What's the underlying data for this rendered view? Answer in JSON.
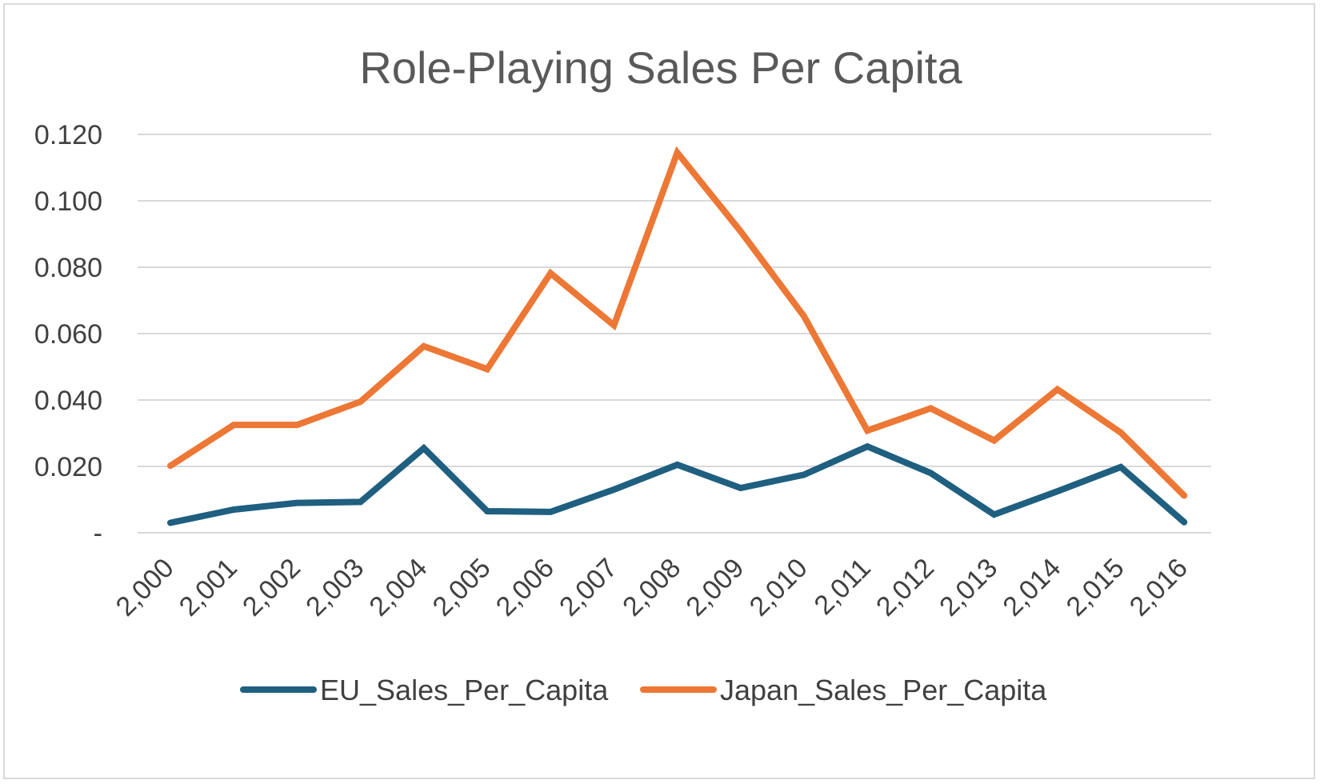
{
  "chart_data": {
    "type": "line",
    "title": "Role-Playing Sales Per Capita",
    "xlabel": "",
    "ylabel": "",
    "x": [
      "2,000",
      "2,001",
      "2,002",
      "2,003",
      "2,004",
      "2,005",
      "2,006",
      "2,007",
      "2,008",
      "2,009",
      "2,010",
      "2,011",
      "2,012",
      "2,013",
      "2,014",
      "2,015",
      "2,016"
    ],
    "y_ticks": [
      "-",
      "0.020",
      "0.040",
      "0.060",
      "0.080",
      "0.100",
      "0.120"
    ],
    "ylim": [
      0,
      0.12
    ],
    "grid": true,
    "legend_position": "bottom",
    "series": [
      {
        "name": "EU_Sales_Per_Capita",
        "color": "#1f5f80",
        "values": [
          0.003,
          0.007,
          0.009,
          0.0093,
          0.0255,
          0.0065,
          0.0063,
          0.013,
          0.0205,
          0.0135,
          0.0175,
          0.026,
          0.018,
          0.0055,
          0.0125,
          0.0198,
          0.0032
        ]
      },
      {
        "name": "Japan_Sales_Per_Capita",
        "color": "#ed7735",
        "values": [
          0.0202,
          0.0325,
          0.0325,
          0.0395,
          0.0562,
          0.0493,
          0.0782,
          0.0625,
          0.1145,
          0.0908,
          0.0652,
          0.0308,
          0.0375,
          0.0278,
          0.0432,
          0.0302,
          0.0112
        ]
      }
    ]
  }
}
